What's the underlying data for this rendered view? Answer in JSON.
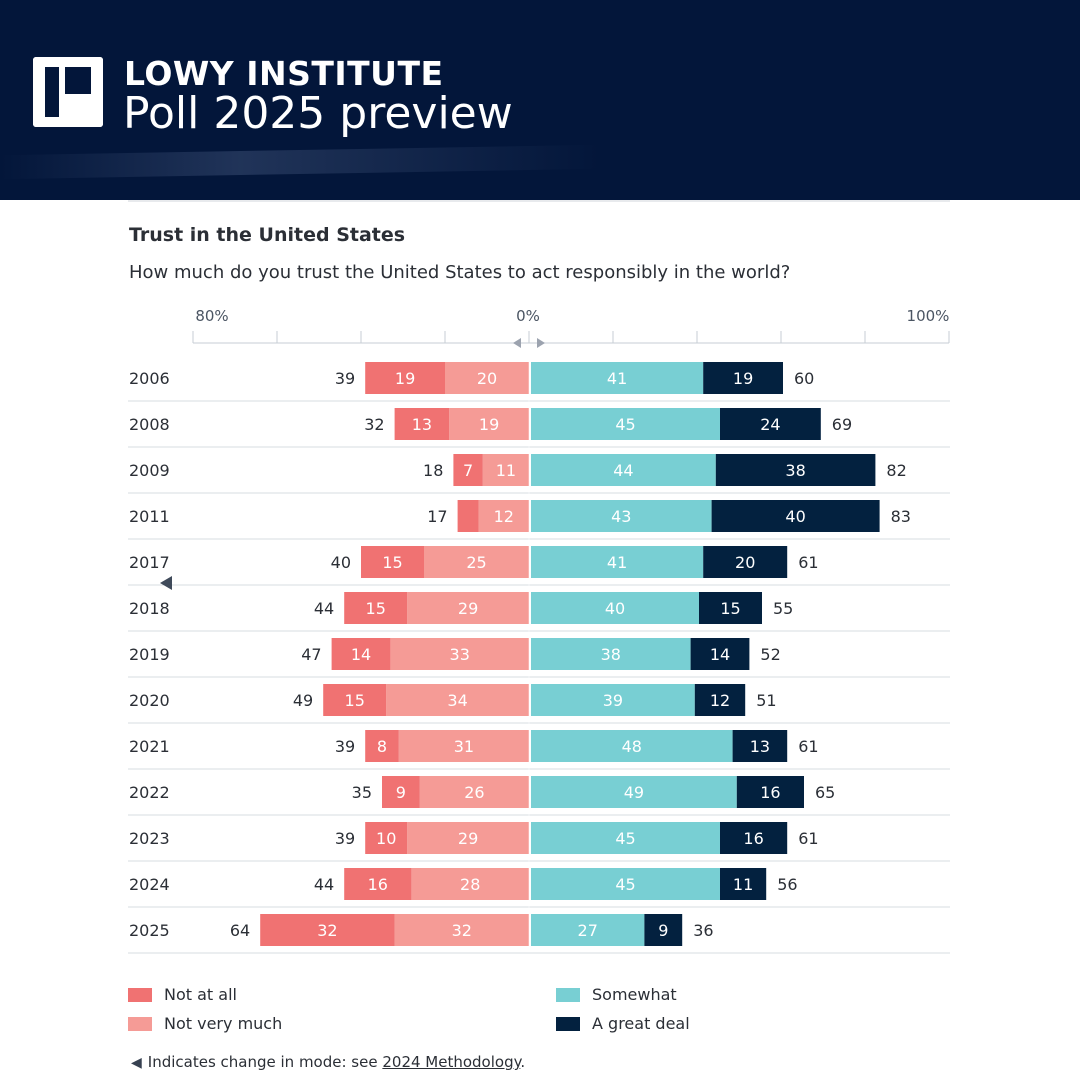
{
  "header": {
    "brand": "LOWY INSTITUTE",
    "subtitle": "Poll 2025 preview",
    "background_color": "#03163a",
    "logo_icon": "lowy-logo-icon"
  },
  "chart_data": {
    "type": "bar",
    "orientation": "horizontal-diverging",
    "title": "Trust in the United States",
    "subtitle": "How much do you trust the United States to act responsibly in the world?",
    "axis_labels": {
      "left": "80%",
      "center": "0%",
      "right": "100%"
    },
    "xlim": [
      -80,
      100
    ],
    "categories": [
      "2006",
      "2008",
      "2009",
      "2011",
      "2017",
      "2018",
      "2019",
      "2020",
      "2021",
      "2022",
      "2023",
      "2024",
      "2025"
    ],
    "series": [
      {
        "name": "Not at all",
        "side": "negative",
        "color": "#f07272",
        "values": [
          19,
          13,
          7,
          5,
          15,
          15,
          14,
          15,
          8,
          9,
          10,
          16,
          32
        ],
        "labels": [
          "19",
          "13",
          "7",
          "",
          "15",
          "15",
          "14",
          "15",
          "8",
          "9",
          "10",
          "16",
          "32"
        ]
      },
      {
        "name": "Not very much",
        "side": "negative",
        "color": "#f59b96",
        "values": [
          20,
          19,
          11,
          12,
          25,
          29,
          33,
          34,
          31,
          26,
          29,
          28,
          32
        ],
        "labels": [
          "20",
          "19",
          "11",
          "12",
          "25",
          "29",
          "33",
          "34",
          "31",
          "26",
          "29",
          "28",
          "32"
        ]
      },
      {
        "name": "Somewhat",
        "side": "positive",
        "color": "#78cfd3",
        "values": [
          41,
          45,
          44,
          43,
          41,
          40,
          38,
          39,
          48,
          49,
          45,
          45,
          27
        ],
        "labels": [
          "41",
          "45",
          "44",
          "43",
          "41",
          "40",
          "38",
          "39",
          "48",
          "49",
          "45",
          "45",
          "27"
        ]
      },
      {
        "name": "A great deal",
        "side": "positive",
        "color": "#03213f",
        "values": [
          19,
          24,
          38,
          40,
          20,
          15,
          14,
          12,
          13,
          16,
          16,
          11,
          9
        ],
        "labels": [
          "19",
          "24",
          "38",
          "40",
          "20",
          "15",
          "14",
          "12",
          "13",
          "16",
          "16",
          "11",
          "9"
        ]
      }
    ],
    "negative_totals": [
      39,
      32,
      18,
      17,
      40,
      44,
      47,
      49,
      39,
      35,
      39,
      44,
      64
    ],
    "positive_totals": [
      60,
      69,
      82,
      83,
      61,
      55,
      52,
      51,
      61,
      65,
      61,
      56,
      36
    ],
    "mode_change_marker_before": "2018",
    "grid": true
  },
  "legend": [
    {
      "label": "Not at all",
      "color": "#f07272"
    },
    {
      "label": "Not very much",
      "color": "#f59b96"
    },
    {
      "label": "Somewhat",
      "color": "#78cfd3"
    },
    {
      "label": "A great deal",
      "color": "#03213f"
    }
  ],
  "footnote": {
    "marker_icon": "left-triangle-icon",
    "text": "Indicates change in mode: see ",
    "link_text": "2024 Methodology",
    "suffix": "."
  }
}
